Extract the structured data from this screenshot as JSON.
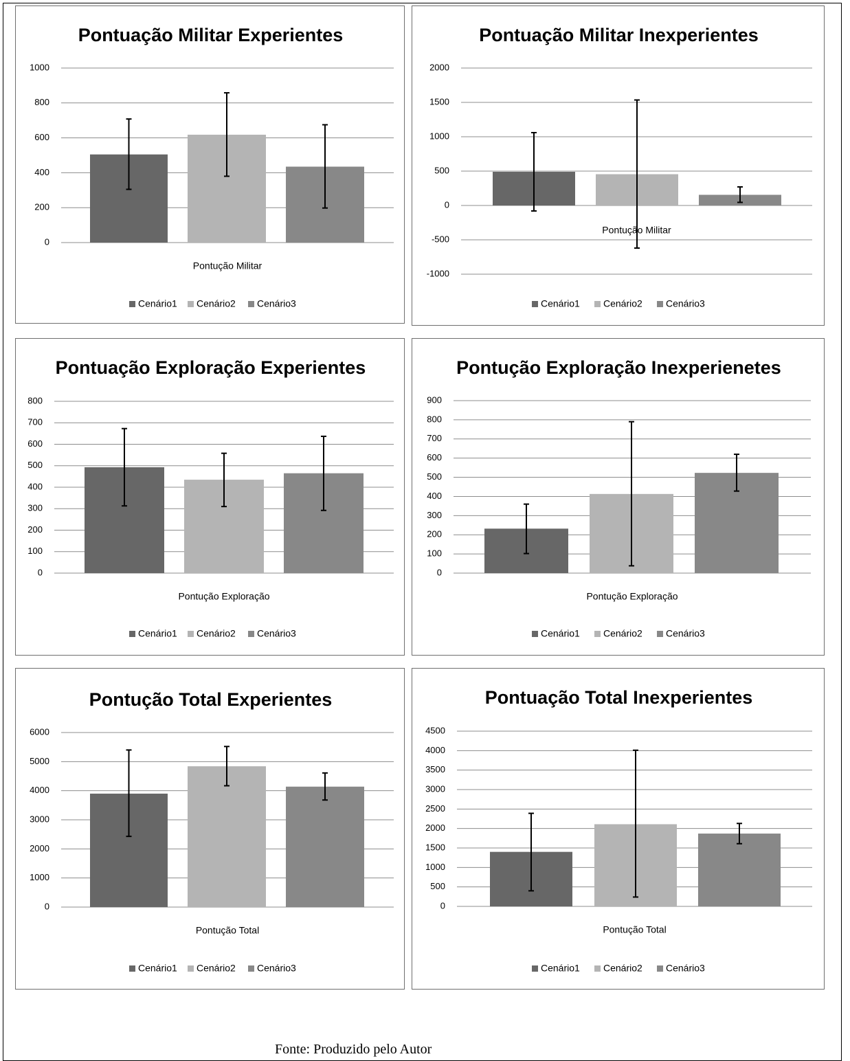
{
  "caption": "Fonte: Produzido pelo Autor",
  "series_colors": [
    "#676767",
    "#b4b4b4",
    "#888888"
  ],
  "chart_data": [
    {
      "type": "bar",
      "title": "Pontuação Militar Experientes",
      "xlabel": "Pontução Militar",
      "categories": [
        "Pontução Militar"
      ],
      "series": [
        {
          "name": "Cenário1",
          "values": [
            505
          ],
          "error_low": [
            305
          ],
          "error_high": [
            708
          ]
        },
        {
          "name": "Cenário2",
          "values": [
            618
          ],
          "error_low": [
            380
          ],
          "error_high": [
            858
          ]
        },
        {
          "name": "Cenário3",
          "values": [
            435
          ],
          "error_low": [
            198
          ],
          "error_high": [
            675
          ]
        }
      ],
      "ylim": [
        0,
        1000
      ],
      "yticks": [
        0,
        200,
        400,
        600,
        800,
        1000
      ],
      "grid": true,
      "legend": "bottom"
    },
    {
      "type": "bar",
      "title": "Pontuação Militar Inexperientes",
      "xlabel": "Pontução Militar",
      "categories": [
        "Pontução Militar"
      ],
      "series": [
        {
          "name": "Cenário1",
          "values": [
            490
          ],
          "error_low": [
            -80
          ],
          "error_high": [
            1060
          ]
        },
        {
          "name": "Cenário2",
          "values": [
            455
          ],
          "error_low": [
            -620
          ],
          "error_high": [
            1535
          ]
        },
        {
          "name": "Cenário3",
          "values": [
            155
          ],
          "error_low": [
            45
          ],
          "error_high": [
            270
          ]
        }
      ],
      "ylim": [
        -1000,
        2000
      ],
      "yticks": [
        -1000,
        -500,
        0,
        500,
        1000,
        1500,
        2000
      ],
      "grid": true,
      "legend": "bottom"
    },
    {
      "type": "bar",
      "title": "Pontuação Exploração Experientes",
      "xlabel": "Pontução Exploração",
      "categories": [
        "Pontução Exploração"
      ],
      "series": [
        {
          "name": "Cenário1",
          "values": [
            493
          ],
          "error_low": [
            313
          ],
          "error_high": [
            673
          ]
        },
        {
          "name": "Cenário2",
          "values": [
            435
          ],
          "error_low": [
            310
          ],
          "error_high": [
            558
          ]
        },
        {
          "name": "Cenário3",
          "values": [
            465
          ],
          "error_low": [
            292
          ],
          "error_high": [
            637
          ]
        }
      ],
      "ylim": [
        0,
        800
      ],
      "yticks": [
        0,
        100,
        200,
        300,
        400,
        500,
        600,
        700,
        800
      ],
      "grid": true,
      "legend": "bottom"
    },
    {
      "type": "bar",
      "title": "Pontução Exploração Inexperienetes",
      "xlabel": "Pontução Exploração",
      "categories": [
        "Pontução Exploração"
      ],
      "series": [
        {
          "name": "Cenário1",
          "values": [
            232
          ],
          "error_low": [
            102
          ],
          "error_high": [
            360
          ]
        },
        {
          "name": "Cenário2",
          "values": [
            413
          ],
          "error_low": [
            38
          ],
          "error_high": [
            790
          ]
        },
        {
          "name": "Cenário3",
          "values": [
            523
          ],
          "error_low": [
            428
          ],
          "error_high": [
            620
          ]
        }
      ],
      "ylim": [
        0,
        900
      ],
      "yticks": [
        0,
        100,
        200,
        300,
        400,
        500,
        600,
        700,
        800,
        900
      ],
      "grid": true,
      "legend": "bottom"
    },
    {
      "type": "bar",
      "title": "Pontução Total Experientes",
      "xlabel": "Pontução Total",
      "categories": [
        "Pontução Total"
      ],
      "series": [
        {
          "name": "Cenário1",
          "values": [
            3900
          ],
          "error_low": [
            2430
          ],
          "error_high": [
            5400
          ]
        },
        {
          "name": "Cenário2",
          "values": [
            4840
          ],
          "error_low": [
            4170
          ],
          "error_high": [
            5520
          ]
        },
        {
          "name": "Cenário3",
          "values": [
            4140
          ],
          "error_low": [
            3680
          ],
          "error_high": [
            4610
          ]
        }
      ],
      "ylim": [
        0,
        6000
      ],
      "yticks": [
        0,
        1000,
        2000,
        3000,
        4000,
        5000,
        6000
      ],
      "grid": true,
      "legend": "bottom"
    },
    {
      "type": "bar",
      "title": "Pontuação Total Inexperientes",
      "xlabel": "Pontução Total",
      "categories": [
        "Pontução Total"
      ],
      "series": [
        {
          "name": "Cenário1",
          "values": [
            1400
          ],
          "error_low": [
            400
          ],
          "error_high": [
            2390
          ]
        },
        {
          "name": "Cenário2",
          "values": [
            2110
          ],
          "error_low": [
            240
          ],
          "error_high": [
            4010
          ]
        },
        {
          "name": "Cenário3",
          "values": [
            1870
          ],
          "error_low": [
            1610
          ],
          "error_high": [
            2130
          ]
        }
      ],
      "ylim": [
        0,
        4500
      ],
      "yticks": [
        0,
        500,
        1000,
        1500,
        2000,
        2500,
        3000,
        3500,
        4000,
        4500
      ],
      "grid": true,
      "legend": "bottom"
    }
  ]
}
